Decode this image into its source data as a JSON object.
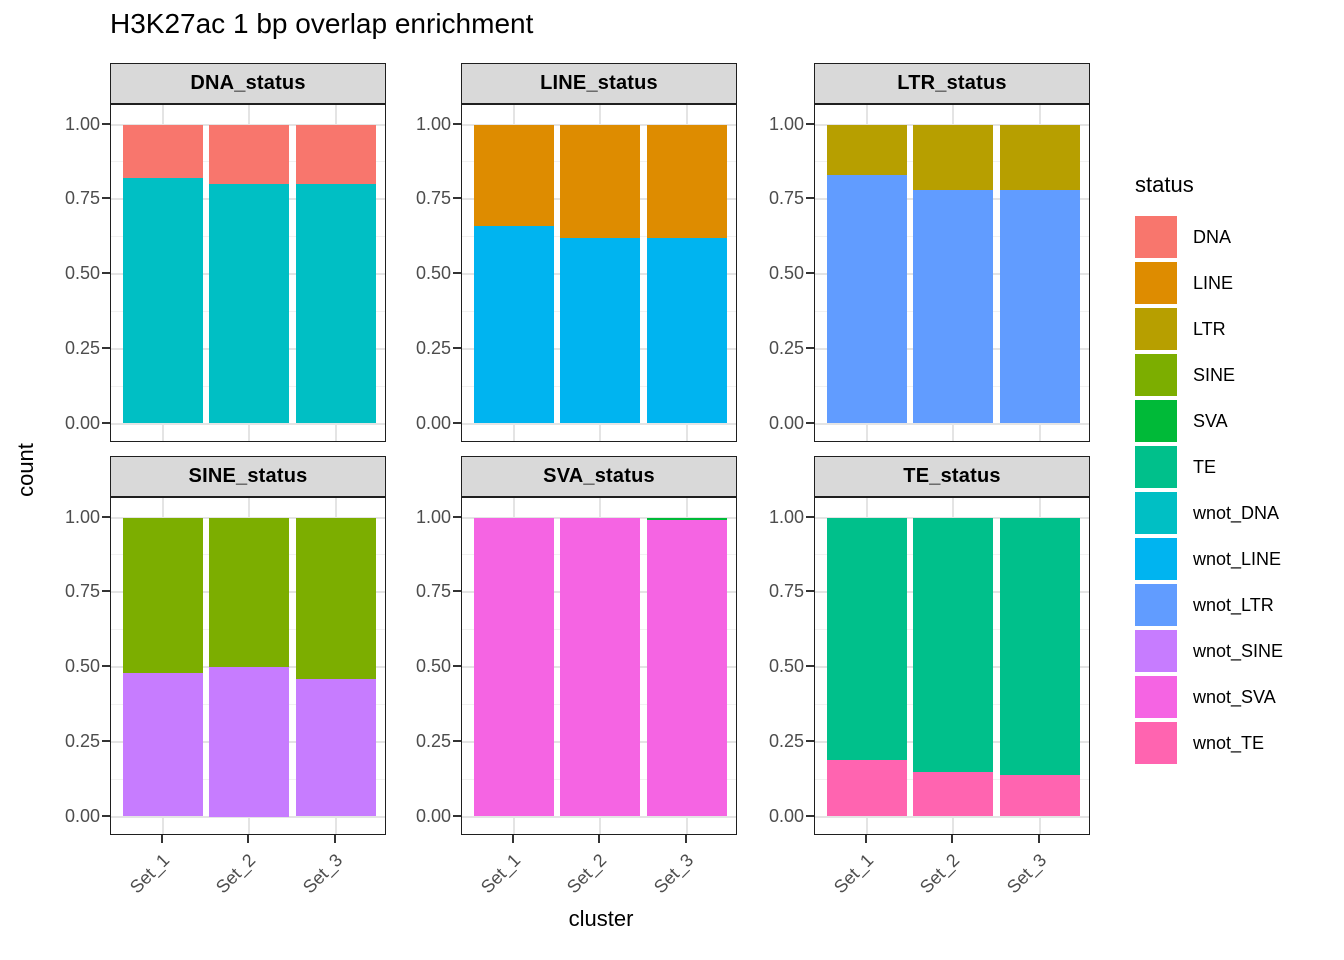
{
  "title": "H3K27ac 1 bp overlap enrichment",
  "axes": {
    "x_title": "cluster",
    "y_title": "count",
    "x_tick_labels": [
      "Set_1",
      "Set_2",
      "Set_3"
    ],
    "y_tick_labels": [
      "1.00",
      "0.75",
      "0.50",
      "0.25",
      "0.00"
    ],
    "y_tick_values": [
      1.0,
      0.75,
      0.5,
      0.25,
      0.0
    ]
  },
  "legend": {
    "title": "status",
    "position": "right",
    "entries": [
      {
        "label": "DNA",
        "color": "#F8766D"
      },
      {
        "label": "LINE",
        "color": "#DE8C00"
      },
      {
        "label": "LTR",
        "color": "#B79F00"
      },
      {
        "label": "SINE",
        "color": "#7CAE00"
      },
      {
        "label": "SVA",
        "color": "#00BA38"
      },
      {
        "label": "TE",
        "color": "#00C08B"
      },
      {
        "label": "wnot_DNA",
        "color": "#00BFC4"
      },
      {
        "label": "wnot_LINE",
        "color": "#00B4F0"
      },
      {
        "label": "wnot_LTR",
        "color": "#619CFF"
      },
      {
        "label": "wnot_SINE",
        "color": "#C77CFF"
      },
      {
        "label": "wnot_SVA",
        "color": "#F564E3"
      },
      {
        "label": "wnot_TE",
        "color": "#FF64B0"
      }
    ]
  },
  "chart_data": {
    "type": "bar",
    "variant": "stacked-proportion",
    "title": "H3K27ac 1 bp overlap enrichment",
    "xlabel": "cluster",
    "ylabel": "count",
    "ylim": [
      0,
      1
    ],
    "grid": true,
    "legend_title": "status",
    "legend_position": "right",
    "y_major_ticks": [
      0,
      0.25,
      0.5,
      0.75,
      1.0
    ],
    "y_minor_ticks": [
      0.125,
      0.375,
      0.625,
      0.875
    ],
    "categories": [
      "Set_1",
      "Set_2",
      "Set_3"
    ],
    "facets": [
      {
        "name": "DNA_status",
        "series": [
          {
            "name": "DNA",
            "color": "#F8766D",
            "values": [
              0.18,
              0.2,
              0.2
            ]
          },
          {
            "name": "wnot_DNA",
            "color": "#00BFC4",
            "values": [
              0.82,
              0.8,
              0.8
            ]
          }
        ]
      },
      {
        "name": "LINE_status",
        "series": [
          {
            "name": "LINE",
            "color": "#DE8C00",
            "values": [
              0.34,
              0.38,
              0.38
            ]
          },
          {
            "name": "wnot_LINE",
            "color": "#00B4F0",
            "values": [
              0.66,
              0.62,
              0.62
            ]
          }
        ]
      },
      {
        "name": "LTR_status",
        "series": [
          {
            "name": "LTR",
            "color": "#B79F00",
            "values": [
              0.17,
              0.22,
              0.22
            ]
          },
          {
            "name": "wnot_LTR",
            "color": "#619CFF",
            "values": [
              0.83,
              0.78,
              0.78
            ]
          }
        ]
      },
      {
        "name": "SINE_status",
        "series": [
          {
            "name": "SINE",
            "color": "#7CAE00",
            "values": [
              0.52,
              0.5,
              0.54
            ]
          },
          {
            "name": "wnot_SINE",
            "color": "#C77CFF",
            "values": [
              0.48,
              0.5,
              0.46
            ]
          }
        ]
      },
      {
        "name": "SVA_status",
        "series": [
          {
            "name": "SVA",
            "color": "#00BA38",
            "values": [
              0.003,
              0.003,
              0.007
            ]
          },
          {
            "name": "wnot_SVA",
            "color": "#F564E3",
            "values": [
              0.997,
              0.997,
              0.993
            ]
          }
        ]
      },
      {
        "name": "TE_status",
        "series": [
          {
            "name": "TE",
            "color": "#00C08B",
            "values": [
              0.81,
              0.85,
              0.86
            ]
          },
          {
            "name": "wnot_TE",
            "color": "#FF64B0",
            "values": [
              0.19,
              0.15,
              0.14
            ]
          }
        ]
      }
    ]
  }
}
